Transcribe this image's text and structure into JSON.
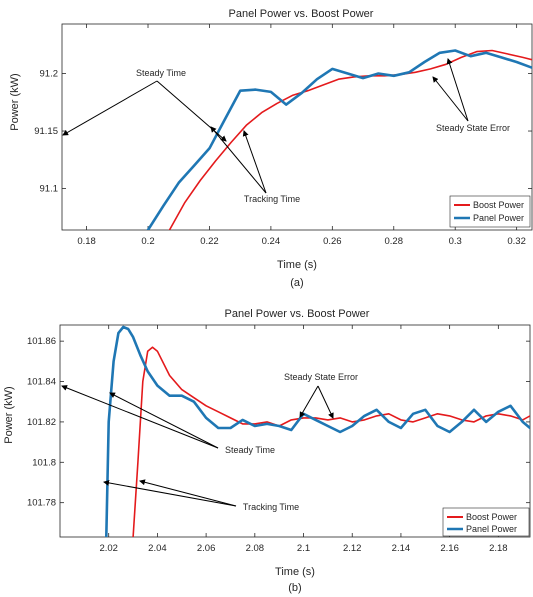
{
  "chart_data": [
    {
      "type": "line",
      "title": "Panel Power vs. Boost Power",
      "xlabel": "Time (s)",
      "ylabel": "Power (kW)",
      "caption": "(a)",
      "xlim": [
        0.172,
        0.325
      ],
      "ylim": [
        91.064,
        91.243
      ],
      "xticks": [
        0.18,
        0.2,
        0.22,
        0.24,
        0.26,
        0.28,
        0.3,
        0.32
      ],
      "xtick_labels": [
        "0.18",
        "0.2",
        "0.22",
        "0.24",
        "0.26",
        "0.28",
        "0.3",
        "0.32"
      ],
      "yticks": [
        91.1,
        91.15,
        91.2
      ],
      "ytick_labels": [
        "91.1",
        "91.15",
        "91.2"
      ],
      "grid": false,
      "legend_position": "bottom-right",
      "series": [
        {
          "name": "Boost Power",
          "color": "#e41a1c",
          "x": [
            0.207,
            0.212,
            0.217,
            0.222,
            0.227,
            0.232,
            0.237,
            0.242,
            0.247,
            0.252,
            0.257,
            0.262,
            0.267,
            0.272,
            0.277,
            0.282,
            0.287,
            0.292,
            0.297,
            0.302,
            0.307,
            0.312,
            0.317,
            0.322,
            0.325
          ],
          "y": [
            91.064,
            91.088,
            91.107,
            91.124,
            91.14,
            91.155,
            91.166,
            91.174,
            91.181,
            91.185,
            91.19,
            91.195,
            91.197,
            91.198,
            91.198,
            91.199,
            91.201,
            91.204,
            91.208,
            91.214,
            91.219,
            91.22,
            91.217,
            91.214,
            91.212
          ]
        },
        {
          "name": "Panel Power",
          "color": "#1f77b4",
          "x": [
            0.2,
            0.205,
            0.21,
            0.215,
            0.22,
            0.225,
            0.23,
            0.235,
            0.24,
            0.245,
            0.25,
            0.255,
            0.26,
            0.265,
            0.27,
            0.275,
            0.28,
            0.285,
            0.29,
            0.295,
            0.3,
            0.305,
            0.31,
            0.315,
            0.32,
            0.325
          ],
          "y": [
            91.064,
            91.085,
            91.105,
            91.12,
            91.135,
            91.16,
            91.185,
            91.186,
            91.184,
            91.173,
            91.183,
            91.195,
            91.204,
            91.2,
            91.196,
            91.2,
            91.198,
            91.201,
            91.21,
            91.218,
            91.22,
            91.215,
            91.218,
            91.214,
            91.21,
            91.205
          ]
        }
      ],
      "annotations": [
        "Steady Time",
        "Tracking Time",
        "Steady State Error"
      ]
    },
    {
      "type": "line",
      "title": "Panel Power vs. Boost Power",
      "xlabel": "Time (s)",
      "ylabel": "Power (kW)",
      "caption": "(b)",
      "xlim": [
        2.0,
        2.193
      ],
      "ylim": [
        101.763,
        101.868
      ],
      "xticks": [
        2.02,
        2.04,
        2.06,
        2.08,
        2.1,
        2.12,
        2.14,
        2.16,
        2.18
      ],
      "xtick_labels": [
        "2.02",
        "2.04",
        "2.06",
        "2.08",
        "2.1",
        "2.12",
        "2.14",
        "2.16",
        "2.18"
      ],
      "yticks": [
        101.78,
        101.8,
        101.82,
        101.84,
        101.86
      ],
      "ytick_labels": [
        "101.78",
        "101.8",
        "101.82",
        "101.84",
        "101.86"
      ],
      "grid": false,
      "legend_position": "bottom-right",
      "series": [
        {
          "name": "Boost Power",
          "color": "#e41a1c",
          "x": [
            2.03,
            2.032,
            2.034,
            2.036,
            2.038,
            2.04,
            2.045,
            2.05,
            2.055,
            2.06,
            2.065,
            2.07,
            2.075,
            2.08,
            2.085,
            2.09,
            2.095,
            2.1,
            2.105,
            2.11,
            2.115,
            2.12,
            2.125,
            2.13,
            2.135,
            2.14,
            2.145,
            2.15,
            2.155,
            2.16,
            2.165,
            2.17,
            2.175,
            2.18,
            2.185,
            2.19,
            2.193
          ],
          "y": [
            101.763,
            101.8,
            101.84,
            101.855,
            101.857,
            101.855,
            101.843,
            101.836,
            101.832,
            101.828,
            101.825,
            101.822,
            101.819,
            101.819,
            101.82,
            101.818,
            101.821,
            101.822,
            101.822,
            101.821,
            101.822,
            101.82,
            101.821,
            101.823,
            101.824,
            101.821,
            101.82,
            101.822,
            101.824,
            101.823,
            101.821,
            101.82,
            101.823,
            101.824,
            101.823,
            101.821,
            101.823
          ]
        },
        {
          "name": "Panel Power",
          "color": "#1f77b4",
          "x": [
            2.019,
            2.02,
            2.022,
            2.024,
            2.026,
            2.028,
            2.03,
            2.033,
            2.036,
            2.04,
            2.045,
            2.05,
            2.055,
            2.06,
            2.065,
            2.07,
            2.075,
            2.08,
            2.085,
            2.09,
            2.095,
            2.1,
            2.105,
            2.11,
            2.115,
            2.12,
            2.125,
            2.13,
            2.135,
            2.14,
            2.145,
            2.15,
            2.155,
            2.16,
            2.165,
            2.17,
            2.175,
            2.18,
            2.185,
            2.19,
            2.193
          ],
          "y": [
            101.763,
            101.82,
            101.85,
            101.864,
            101.867,
            101.866,
            101.862,
            101.853,
            101.845,
            101.838,
            101.833,
            101.833,
            101.83,
            101.822,
            101.817,
            101.817,
            101.821,
            101.818,
            101.819,
            101.818,
            101.816,
            101.824,
            101.821,
            101.818,
            101.815,
            101.818,
            101.823,
            101.826,
            101.82,
            101.817,
            101.824,
            101.826,
            101.818,
            101.815,
            101.82,
            101.826,
            101.82,
            101.825,
            101.828,
            101.82,
            101.817
          ]
        }
      ],
      "annotations": [
        "Steady State Error",
        "Steady Time",
        "Tracking Time"
      ]
    }
  ]
}
